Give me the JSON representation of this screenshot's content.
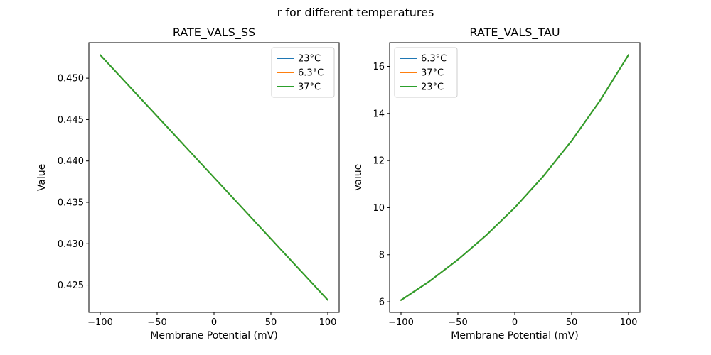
{
  "figure": {
    "suptitle": "r for different temperatures",
    "background_color": "#ffffff",
    "text_color": "#000000"
  },
  "chart_data": [
    {
      "type": "line",
      "title": "RATE_VALS_SS",
      "xlabel": "Membrane Potential (mV)",
      "ylabel": "Value",
      "xlim": [
        -110,
        110
      ],
      "ylim": [
        0.4217,
        0.4543
      ],
      "x": [
        -100,
        -75,
        -50,
        -25,
        0,
        25,
        50,
        75,
        100
      ],
      "xticks": [
        -100,
        -50,
        0,
        50,
        100
      ],
      "xtick_labels": [
        "−100",
        "−50",
        "0",
        "50",
        "100"
      ],
      "yticks": [
        0.425,
        0.43,
        0.435,
        0.44,
        0.445,
        0.45
      ],
      "ytick_labels": [
        "0.425",
        "0.430",
        "0.435",
        "0.440",
        "0.445",
        "0.450"
      ],
      "grid": false,
      "legend_loc": "upper right",
      "series": [
        {
          "name": "23°C",
          "color": "#1f77b4",
          "values": [
            0.4528,
            0.4491,
            0.4454,
            0.4417,
            0.438,
            0.4343,
            0.4306,
            0.4269,
            0.4232
          ]
        },
        {
          "name": "6.3°C",
          "color": "#ff7f0e",
          "values": [
            0.4528,
            0.4491,
            0.4454,
            0.4417,
            0.438,
            0.4343,
            0.4306,
            0.4269,
            0.4232
          ]
        },
        {
          "name": "37°C",
          "color": "#2ca02c",
          "values": [
            0.4528,
            0.4491,
            0.4454,
            0.4417,
            0.438,
            0.4343,
            0.4306,
            0.4269,
            0.4232
          ]
        }
      ]
    },
    {
      "type": "line",
      "title": "RATE_VALS_TAU",
      "xlabel": "Membrane Potential (mV)",
      "ylabel": "Value",
      "xlim": [
        -110,
        110
      ],
      "ylim": [
        5.55,
        17.01
      ],
      "x": [
        -100,
        -75,
        -50,
        -25,
        0,
        25,
        50,
        75,
        100
      ],
      "xticks": [
        -100,
        -50,
        0,
        50,
        100
      ],
      "xtick_labels": [
        "−100",
        "−50",
        "0",
        "50",
        "100"
      ],
      "yticks": [
        6,
        8,
        10,
        12,
        14,
        16
      ],
      "ytick_labels": [
        "6",
        "8",
        "10",
        "12",
        "14",
        "16"
      ],
      "grid": false,
      "legend_loc": "upper left",
      "series": [
        {
          "name": "6.3°C",
          "color": "#1f77b4",
          "values": [
            6.07,
            6.87,
            7.79,
            8.83,
            10.0,
            11.33,
            12.84,
            14.55,
            16.49
          ]
        },
        {
          "name": "37°C",
          "color": "#ff7f0e",
          "values": [
            6.07,
            6.87,
            7.79,
            8.83,
            10.0,
            11.33,
            12.84,
            14.55,
            16.49
          ]
        },
        {
          "name": "23°C",
          "color": "#2ca02c",
          "values": [
            6.07,
            6.87,
            7.79,
            8.83,
            10.0,
            11.33,
            12.84,
            14.55,
            16.49
          ]
        }
      ]
    }
  ]
}
